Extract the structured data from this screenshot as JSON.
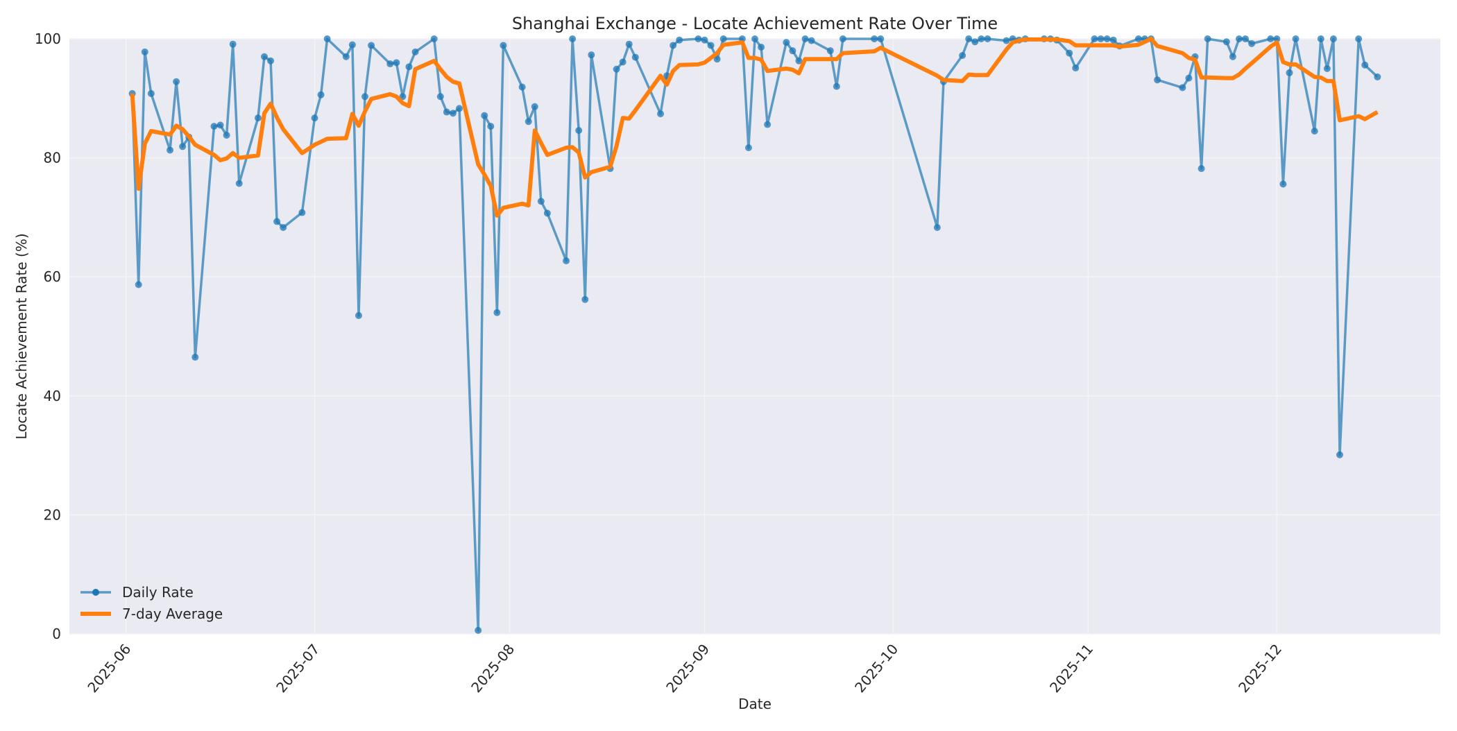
{
  "chart_data": {
    "type": "line",
    "title": "Shanghai Exchange - Locate Achievement Rate Over Time",
    "xlabel": "Date",
    "ylabel": "Locate Achievement Rate (%)",
    "ylim": [
      0,
      100
    ],
    "xlim": [
      "2025-05-23",
      "2025-12-27"
    ],
    "yticks": [
      0,
      20,
      40,
      60,
      80,
      100
    ],
    "xticks": [
      "2025-06",
      "2025-07",
      "2025-08",
      "2025-09",
      "2025-10",
      "2025-11",
      "2025-12"
    ],
    "grid": true,
    "legend_position": "lower left",
    "series": [
      {
        "name": "Daily Rate",
        "color": "#1f77b4",
        "style": "line-marker",
        "points": [
          [
            "2025-06-02",
            90.8
          ],
          [
            "2025-06-03",
            58.7
          ],
          [
            "2025-06-04",
            97.8
          ],
          [
            "2025-06-05",
            90.8
          ],
          [
            "2025-06-08",
            81.3
          ],
          [
            "2025-06-09",
            92.8
          ],
          [
            "2025-06-10",
            81.9
          ],
          [
            "2025-06-11",
            83.5
          ],
          [
            "2025-06-12",
            46.5
          ],
          [
            "2025-06-15",
            85.3
          ],
          [
            "2025-06-16",
            85.5
          ],
          [
            "2025-06-17",
            83.8
          ],
          [
            "2025-06-18",
            99.1
          ],
          [
            "2025-06-19",
            75.7
          ],
          [
            "2025-06-22",
            86.7
          ],
          [
            "2025-06-23",
            97.0
          ],
          [
            "2025-06-24",
            96.3
          ],
          [
            "2025-06-25",
            69.3
          ],
          [
            "2025-06-26",
            68.3
          ],
          [
            "2025-06-29",
            70.8
          ],
          [
            "2025-07-01",
            86.7
          ],
          [
            "2025-07-02",
            90.6
          ],
          [
            "2025-07-03",
            100.0
          ],
          [
            "2025-07-06",
            97.0
          ],
          [
            "2025-07-07",
            99.0
          ],
          [
            "2025-07-08",
            53.5
          ],
          [
            "2025-07-09",
            90.3
          ],
          [
            "2025-07-10",
            98.9
          ],
          [
            "2025-07-13",
            95.8
          ],
          [
            "2025-07-14",
            96.0
          ],
          [
            "2025-07-15",
            90.3
          ],
          [
            "2025-07-16",
            95.3
          ],
          [
            "2025-07-17",
            97.8
          ],
          [
            "2025-07-20",
            100.0
          ],
          [
            "2025-07-21",
            90.3
          ],
          [
            "2025-07-22",
            87.7
          ],
          [
            "2025-07-23",
            87.5
          ],
          [
            "2025-07-24",
            88.3
          ],
          [
            "2025-07-27",
            0.6
          ],
          [
            "2025-07-28",
            87.1
          ],
          [
            "2025-07-29",
            85.3
          ],
          [
            "2025-07-30",
            54.0
          ],
          [
            "2025-07-31",
            98.9
          ],
          [
            "2025-08-03",
            91.9
          ],
          [
            "2025-08-04",
            86.1
          ],
          [
            "2025-08-05",
            88.6
          ],
          [
            "2025-08-06",
            72.7
          ],
          [
            "2025-08-07",
            70.7
          ],
          [
            "2025-08-10",
            62.7
          ],
          [
            "2025-08-11",
            100.0
          ],
          [
            "2025-08-12",
            84.6
          ],
          [
            "2025-08-13",
            56.2
          ],
          [
            "2025-08-14",
            97.3
          ],
          [
            "2025-08-17",
            78.2
          ],
          [
            "2025-08-18",
            94.9
          ],
          [
            "2025-08-19",
            96.1
          ],
          [
            "2025-08-20",
            99.1
          ],
          [
            "2025-08-21",
            96.9
          ],
          [
            "2025-08-25",
            87.4
          ],
          [
            "2025-08-26",
            93.8
          ],
          [
            "2025-08-27",
            98.9
          ],
          [
            "2025-08-28",
            99.8
          ],
          [
            "2025-08-31",
            100.0
          ],
          [
            "2025-09-01",
            99.8
          ],
          [
            "2025-09-02",
            98.9
          ],
          [
            "2025-09-03",
            96.6
          ],
          [
            "2025-09-04",
            100.0
          ],
          [
            "2025-09-07",
            100.0
          ],
          [
            "2025-09-08",
            81.7
          ],
          [
            "2025-09-09",
            100.0
          ],
          [
            "2025-09-10",
            98.6
          ],
          [
            "2025-09-11",
            85.6
          ],
          [
            "2025-09-14",
            99.4
          ],
          [
            "2025-09-15",
            98.0
          ],
          [
            "2025-09-16",
            96.3
          ],
          [
            "2025-09-17",
            100.0
          ],
          [
            "2025-09-18",
            99.7
          ],
          [
            "2025-09-21",
            98.0
          ],
          [
            "2025-09-22",
            92.0
          ],
          [
            "2025-09-23",
            100.0
          ],
          [
            "2025-09-28",
            100.0
          ],
          [
            "2025-09-29",
            100.0
          ],
          [
            "2025-10-08",
            68.3
          ],
          [
            "2025-10-09",
            92.8
          ],
          [
            "2025-10-12",
            97.2
          ],
          [
            "2025-10-13",
            100.0
          ],
          [
            "2025-10-14",
            99.5
          ],
          [
            "2025-10-15",
            100.0
          ],
          [
            "2025-10-16",
            100.0
          ],
          [
            "2025-10-19",
            99.7
          ],
          [
            "2025-10-20",
            100.0
          ],
          [
            "2025-10-21",
            99.8
          ],
          [
            "2025-10-22",
            100.0
          ],
          [
            "2025-10-25",
            100.0
          ],
          [
            "2025-10-26",
            100.0
          ],
          [
            "2025-10-27",
            99.8
          ],
          [
            "2025-10-29",
            97.6
          ],
          [
            "2025-10-30",
            95.1
          ],
          [
            "2025-11-02",
            100.0
          ],
          [
            "2025-11-03",
            100.0
          ],
          [
            "2025-11-04",
            100.0
          ],
          [
            "2025-11-05",
            99.8
          ],
          [
            "2025-11-06",
            98.8
          ],
          [
            "2025-11-09",
            100.0
          ],
          [
            "2025-11-10",
            100.0
          ],
          [
            "2025-11-11",
            100.0
          ],
          [
            "2025-11-12",
            93.1
          ],
          [
            "2025-11-16",
            91.8
          ],
          [
            "2025-11-17",
            93.4
          ],
          [
            "2025-11-18",
            97.0
          ],
          [
            "2025-11-19",
            78.2
          ],
          [
            "2025-11-20",
            100.0
          ],
          [
            "2025-11-23",
            99.5
          ],
          [
            "2025-11-24",
            97.0
          ],
          [
            "2025-11-25",
            100.0
          ],
          [
            "2025-11-26",
            100.0
          ],
          [
            "2025-11-27",
            99.2
          ],
          [
            "2025-11-30",
            100.0
          ],
          [
            "2025-12-01",
            100.0
          ],
          [
            "2025-12-02",
            75.6
          ],
          [
            "2025-12-03",
            94.3
          ],
          [
            "2025-12-04",
            100.0
          ],
          [
            "2025-12-07",
            84.5
          ],
          [
            "2025-12-08",
            100.0
          ],
          [
            "2025-12-09",
            95.0
          ],
          [
            "2025-12-10",
            100.0
          ],
          [
            "2025-12-11",
            30.1
          ],
          [
            "2025-12-14",
            100.0
          ],
          [
            "2025-12-15",
            95.6
          ],
          [
            "2025-12-17",
            93.6
          ]
        ]
      },
      {
        "name": "7-day Average",
        "color": "#ff7f0e",
        "style": "line",
        "points": [
          [
            "2025-06-02",
            90.8
          ],
          [
            "2025-06-03",
            74.8
          ],
          [
            "2025-06-04",
            82.4
          ],
          [
            "2025-06-05",
            84.5
          ],
          [
            "2025-06-08",
            83.9
          ],
          [
            "2025-06-09",
            85.4
          ],
          [
            "2025-06-10",
            84.8
          ],
          [
            "2025-06-11",
            83.6
          ],
          [
            "2025-06-12",
            82.2
          ],
          [
            "2025-06-15",
            80.5
          ],
          [
            "2025-06-16",
            79.6
          ],
          [
            "2025-06-17",
            79.9
          ],
          [
            "2025-06-18",
            80.8
          ],
          [
            "2025-06-19",
            80.0
          ],
          [
            "2025-06-22",
            80.4
          ],
          [
            "2025-06-23",
            87.5
          ],
          [
            "2025-06-24",
            89.1
          ],
          [
            "2025-06-25",
            86.8
          ],
          [
            "2025-06-26",
            84.8
          ],
          [
            "2025-06-29",
            80.8
          ],
          [
            "2025-07-01",
            82.2
          ],
          [
            "2025-07-02",
            82.7
          ],
          [
            "2025-07-03",
            83.2
          ],
          [
            "2025-07-06",
            83.3
          ],
          [
            "2025-07-07",
            87.4
          ],
          [
            "2025-07-08",
            85.4
          ],
          [
            "2025-07-09",
            87.8
          ],
          [
            "2025-07-10",
            89.9
          ],
          [
            "2025-07-13",
            90.7
          ],
          [
            "2025-07-14",
            90.3
          ],
          [
            "2025-07-15",
            89.2
          ],
          [
            "2025-07-16",
            88.7
          ],
          [
            "2025-07-17",
            94.9
          ],
          [
            "2025-07-20",
            96.3
          ],
          [
            "2025-07-21",
            94.9
          ],
          [
            "2025-07-22",
            93.6
          ],
          [
            "2025-07-23",
            92.8
          ],
          [
            "2025-07-24",
            92.5
          ],
          [
            "2025-07-27",
            78.9
          ],
          [
            "2025-07-28",
            77.2
          ],
          [
            "2025-07-29",
            75.3
          ],
          [
            "2025-07-30",
            70.3
          ],
          [
            "2025-07-31",
            71.6
          ],
          [
            "2025-08-03",
            72.3
          ],
          [
            "2025-08-04",
            72.0
          ],
          [
            "2025-08-05",
            84.6
          ],
          [
            "2025-08-06",
            82.5
          ],
          [
            "2025-08-07",
            80.5
          ],
          [
            "2025-08-10",
            81.7
          ],
          [
            "2025-08-11",
            81.8
          ],
          [
            "2025-08-12",
            80.9
          ],
          [
            "2025-08-13",
            76.7
          ],
          [
            "2025-08-14",
            77.6
          ],
          [
            "2025-08-17",
            78.5
          ],
          [
            "2025-08-18",
            82.0
          ],
          [
            "2025-08-19",
            86.7
          ],
          [
            "2025-08-20",
            86.6
          ],
          [
            "2025-08-21",
            88.0
          ],
          [
            "2025-08-25",
            93.8
          ],
          [
            "2025-08-26",
            92.3
          ],
          [
            "2025-08-27",
            94.6
          ],
          [
            "2025-08-28",
            95.6
          ],
          [
            "2025-08-31",
            95.7
          ],
          [
            "2025-09-01",
            96.0
          ],
          [
            "2025-09-02",
            96.8
          ],
          [
            "2025-09-03",
            97.6
          ],
          [
            "2025-09-04",
            99.0
          ],
          [
            "2025-09-07",
            99.4
          ],
          [
            "2025-09-08",
            96.8
          ],
          [
            "2025-09-09",
            96.8
          ],
          [
            "2025-09-10",
            96.5
          ],
          [
            "2025-09-11",
            94.6
          ],
          [
            "2025-09-14",
            95.0
          ],
          [
            "2025-09-15",
            94.8
          ],
          [
            "2025-09-16",
            94.2
          ],
          [
            "2025-09-17",
            96.6
          ],
          [
            "2025-09-18",
            96.6
          ],
          [
            "2025-09-21",
            96.6
          ],
          [
            "2025-09-22",
            96.6
          ],
          [
            "2025-09-23",
            97.6
          ],
          [
            "2025-09-28",
            97.9
          ],
          [
            "2025-09-29",
            98.5
          ],
          [
            "2025-10-08",
            93.8
          ],
          [
            "2025-10-09",
            93.1
          ],
          [
            "2025-10-12",
            92.9
          ],
          [
            "2025-10-13",
            94.0
          ],
          [
            "2025-10-14",
            93.9
          ],
          [
            "2025-10-15",
            93.9
          ],
          [
            "2025-10-16",
            93.9
          ],
          [
            "2025-10-19",
            98.2
          ],
          [
            "2025-10-20",
            99.4
          ],
          [
            "2025-10-21",
            99.7
          ],
          [
            "2025-10-22",
            99.9
          ],
          [
            "2025-10-25",
            99.9
          ],
          [
            "2025-10-26",
            99.9
          ],
          [
            "2025-10-27",
            99.9
          ],
          [
            "2025-10-29",
            99.6
          ],
          [
            "2025-10-30",
            98.9
          ],
          [
            "2025-11-02",
            98.9
          ],
          [
            "2025-11-03",
            98.9
          ],
          [
            "2025-11-04",
            98.9
          ],
          [
            "2025-11-05",
            98.9
          ],
          [
            "2025-11-06",
            98.7
          ],
          [
            "2025-11-09",
            99.0
          ],
          [
            "2025-11-10",
            99.5
          ],
          [
            "2025-11-11",
            100.0
          ],
          [
            "2025-11-12",
            98.8
          ],
          [
            "2025-11-16",
            97.6
          ],
          [
            "2025-11-17",
            96.8
          ],
          [
            "2025-11-18",
            96.5
          ],
          [
            "2025-11-19",
            93.5
          ],
          [
            "2025-11-20",
            93.5
          ],
          [
            "2025-11-23",
            93.4
          ],
          [
            "2025-11-24",
            93.4
          ],
          [
            "2025-11-25",
            94.0
          ],
          [
            "2025-11-26",
            95.0
          ],
          [
            "2025-11-27",
            95.9
          ],
          [
            "2025-11-30",
            98.7
          ],
          [
            "2025-12-01",
            99.4
          ],
          [
            "2025-12-02",
            96.1
          ],
          [
            "2025-12-03",
            95.7
          ],
          [
            "2025-12-04",
            95.7
          ],
          [
            "2025-12-07",
            93.6
          ],
          [
            "2025-12-08",
            93.5
          ],
          [
            "2025-12-09",
            92.9
          ],
          [
            "2025-12-10",
            92.9
          ],
          [
            "2025-12-11",
            86.3
          ],
          [
            "2025-12-14",
            87.0
          ],
          [
            "2025-12-15",
            86.5
          ],
          [
            "2025-12-17",
            87.7
          ]
        ]
      }
    ]
  },
  "style": {
    "plot_bg": "#eaeaf2",
    "grid_color": "#f4f4f8",
    "text_color": "#262626"
  }
}
